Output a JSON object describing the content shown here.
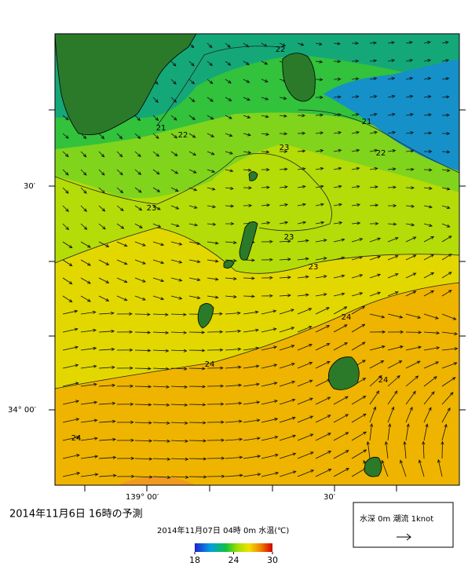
{
  "header": {
    "date_title": "2014年11月6日 16時の予測"
  },
  "map": {
    "lat_labels": [
      "30′",
      "34° 00′"
    ],
    "lon_labels": [
      "139° 00′",
      "30′"
    ],
    "contour_labels": [
      "22",
      "21",
      "22",
      "21",
      "22",
      "23",
      "23",
      "23",
      "23",
      "24",
      "24",
      "24",
      "24"
    ]
  },
  "colorbar": {
    "title": "2014年11月07日 04時 0m 水温(℃)",
    "range": [
      18,
      30
    ],
    "ticks": [
      18,
      24,
      30
    ]
  },
  "legend": {
    "text": "水深 0m 潮流 1knot"
  }
}
